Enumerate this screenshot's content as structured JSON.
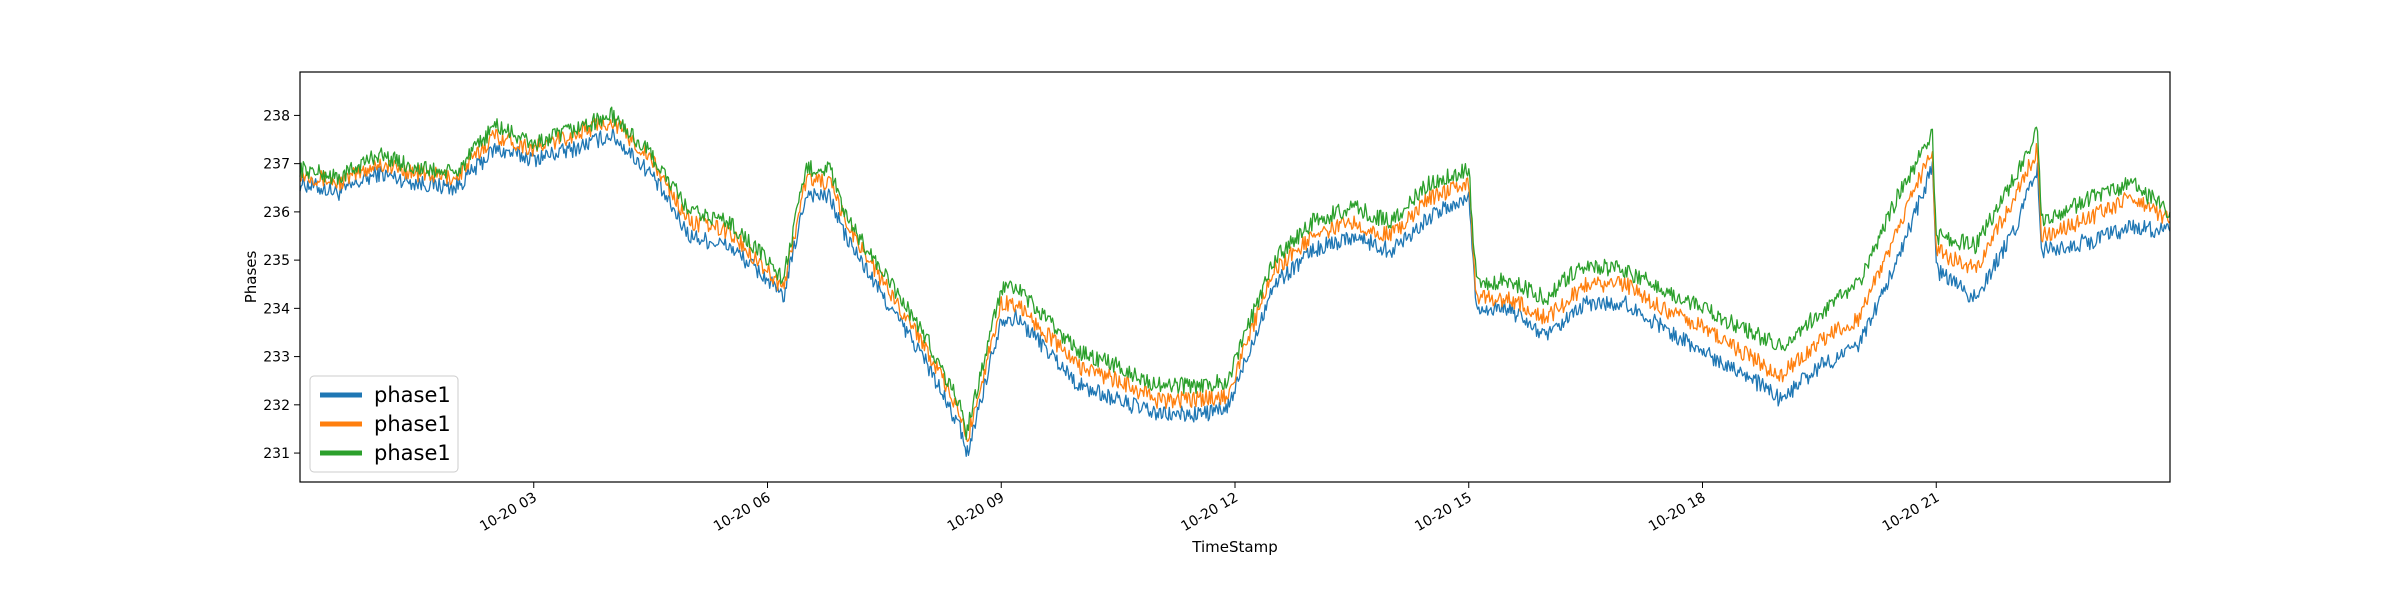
{
  "chart_data": {
    "type": "line",
    "title": "",
    "xlabel": "TimeStamp",
    "ylabel": "Phases",
    "grid": false,
    "legend_placement": "lower-left",
    "x_range": [
      "10-20 00:00",
      "10-20 24:00"
    ],
    "ylim": [
      230.4,
      238.9
    ],
    "x_ticks": [
      "10-20 03",
      "10-20 06",
      "10-20 09",
      "10-20 12",
      "10-20 15",
      "10-20 18",
      "10-20 21"
    ],
    "x_tick_hours": [
      3,
      6,
      9,
      12,
      15,
      18,
      21
    ],
    "y_ticks": [
      231,
      232,
      233,
      234,
      235,
      236,
      237,
      238
    ],
    "x_hours": [
      0.0,
      0.5,
      1.0,
      1.5,
      2.0,
      2.5,
      3.0,
      3.5,
      4.0,
      4.5,
      5.0,
      5.5,
      6.0,
      6.2,
      6.5,
      6.8,
      7.0,
      7.5,
      8.0,
      8.5,
      8.55,
      9.0,
      9.2,
      9.5,
      10.0,
      10.5,
      11.0,
      11.5,
      11.9,
      12.5,
      13.0,
      13.5,
      14.0,
      14.5,
      15.0,
      15.1,
      15.5,
      16.0,
      16.3,
      16.5,
      17.0,
      17.5,
      18.0,
      18.5,
      19.0,
      19.5,
      20.0,
      20.5,
      20.95,
      21.0,
      21.5,
      22.0,
      22.3,
      22.35,
      23.0,
      23.5,
      24.0
    ],
    "series": [
      {
        "name": "phase1",
        "color": "#1f77b4",
        "values": [
          236.6,
          236.4,
          236.8,
          236.6,
          236.5,
          237.3,
          237.1,
          237.3,
          237.6,
          236.8,
          235.5,
          235.3,
          234.6,
          234.2,
          236.4,
          236.3,
          235.5,
          234.2,
          233.0,
          231.4,
          230.9,
          233.8,
          233.8,
          233.3,
          232.4,
          232.1,
          231.8,
          231.8,
          231.9,
          234.5,
          235.2,
          235.5,
          235.2,
          235.9,
          236.3,
          234.0,
          234.0,
          233.4,
          233.8,
          234.1,
          234.1,
          233.6,
          233.1,
          232.7,
          232.1,
          232.8,
          233.2,
          235.0,
          236.9,
          234.8,
          234.2,
          235.6,
          236.9,
          235.2,
          235.4,
          235.7,
          235.6
        ]
      },
      {
        "name": "phase1",
        "color": "#ff7f0e",
        "values": [
          236.8,
          236.6,
          237.0,
          236.8,
          236.7,
          237.6,
          237.3,
          237.6,
          237.9,
          237.1,
          235.8,
          235.6,
          234.8,
          234.4,
          236.7,
          236.6,
          235.8,
          234.5,
          233.3,
          231.7,
          231.2,
          234.1,
          234.1,
          233.6,
          232.8,
          232.5,
          232.1,
          232.1,
          232.2,
          234.8,
          235.5,
          235.8,
          235.5,
          236.3,
          236.6,
          234.2,
          234.2,
          233.8,
          234.2,
          234.5,
          234.5,
          234.0,
          233.6,
          233.1,
          232.6,
          233.3,
          233.8,
          235.6,
          237.3,
          235.2,
          234.8,
          236.3,
          237.3,
          235.5,
          235.9,
          236.3,
          235.8
        ]
      },
      {
        "name": "phase1",
        "color": "#2ca02c",
        "values": [
          236.9,
          236.7,
          237.2,
          236.9,
          236.8,
          237.8,
          237.4,
          237.7,
          238.0,
          237.2,
          236.0,
          235.8,
          235.0,
          234.6,
          236.9,
          236.9,
          235.9,
          234.7,
          233.5,
          231.9,
          231.4,
          234.4,
          234.4,
          233.9,
          233.1,
          232.8,
          232.4,
          232.4,
          232.5,
          235.0,
          235.8,
          236.1,
          235.8,
          236.6,
          236.9,
          234.5,
          234.6,
          234.2,
          234.7,
          234.9,
          234.8,
          234.4,
          234.0,
          233.6,
          233.2,
          233.9,
          234.5,
          236.3,
          237.6,
          235.5,
          235.3,
          236.7,
          237.7,
          235.8,
          236.3,
          236.6,
          236.0
        ]
      }
    ]
  }
}
